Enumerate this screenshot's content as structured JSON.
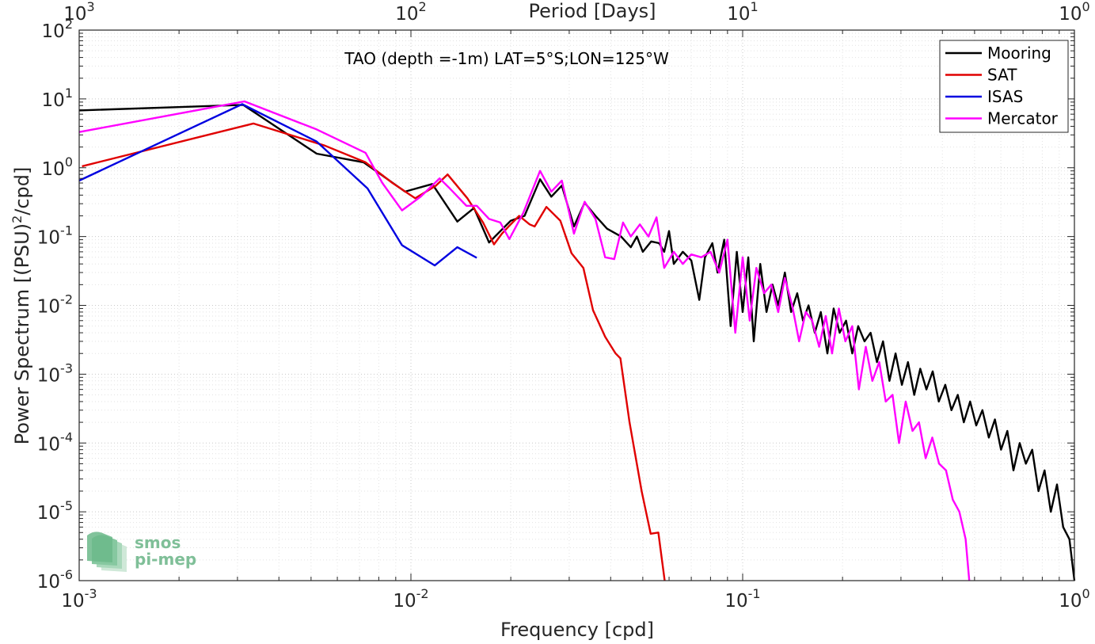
{
  "chart_data": {
    "type": "line",
    "xscale": "log",
    "yscale": "log",
    "xlim": [
      0.001,
      1
    ],
    "ylim": [
      1e-06,
      100
    ],
    "grid": "on (major and minor)",
    "legend_placement": "top-right",
    "xlabel": "Frequency [cpd]",
    "ylabel_parts": {
      "pre": "Power Spectrum [(PSU)",
      "sup": "2",
      "post": "/cpd]"
    },
    "top_axis_label": "Period [Days]",
    "annotation": "TAO (depth =-1m) LAT=5°S;LON=125°W",
    "x_tick_labels": [
      {
        "base": "10",
        "exp": "-3",
        "value": 0.001
      },
      {
        "base": "10",
        "exp": "-2",
        "value": 0.01
      },
      {
        "base": "10",
        "exp": "-1",
        "value": 0.1
      },
      {
        "base": "10",
        "exp": "0",
        "value": 1
      }
    ],
    "top_tick_labels": [
      {
        "base": "10",
        "exp": "3",
        "frequency": 0.001
      },
      {
        "base": "10",
        "exp": "2",
        "frequency": 0.01
      },
      {
        "base": "10",
        "exp": "1",
        "frequency": 0.1
      },
      {
        "base": "10",
        "exp": "0",
        "frequency": 1
      }
    ],
    "y_tick_labels": [
      {
        "base": "10",
        "exp": "2",
        "value": 100
      },
      {
        "base": "10",
        "exp": "1",
        "value": 10
      },
      {
        "base": "10",
        "exp": "0",
        "value": 1
      },
      {
        "base": "10",
        "exp": "-1",
        "value": 0.1
      },
      {
        "base": "10",
        "exp": "-2",
        "value": 0.01
      },
      {
        "base": "10",
        "exp": "-3",
        "value": 0.001
      },
      {
        "base": "10",
        "exp": "-4",
        "value": 0.0001
      },
      {
        "base": "10",
        "exp": "-5",
        "value": 1e-05
      },
      {
        "base": "10",
        "exp": "-6",
        "value": 1e-06
      }
    ],
    "series": [
      {
        "name": "Mooring",
        "color": "#000000",
        "points": [
          [
            0.001,
            6.8
          ],
          [
            0.00312,
            8.2
          ],
          [
            0.0052,
            1.6
          ],
          [
            0.0072,
            1.2
          ],
          [
            0.0096,
            0.45
          ],
          [
            0.0116,
            0.58
          ],
          [
            0.0138,
            0.165
          ],
          [
            0.0155,
            0.26
          ],
          [
            0.0172,
            0.082
          ],
          [
            0.02,
            0.17
          ],
          [
            0.022,
            0.2
          ],
          [
            0.0245,
            0.68
          ],
          [
            0.0265,
            0.38
          ],
          [
            0.0285,
            0.55
          ],
          [
            0.031,
            0.14
          ],
          [
            0.0334,
            0.31
          ],
          [
            0.036,
            0.2
          ],
          [
            0.039,
            0.13
          ],
          [
            0.043,
            0.1
          ],
          [
            0.046,
            0.07
          ],
          [
            0.048,
            0.1
          ],
          [
            0.05,
            0.06
          ],
          [
            0.053,
            0.085
          ],
          [
            0.056,
            0.08
          ],
          [
            0.058,
            0.06
          ],
          [
            0.06,
            0.12
          ],
          [
            0.062,
            0.04
          ],
          [
            0.066,
            0.06
          ],
          [
            0.07,
            0.045
          ],
          [
            0.074,
            0.012
          ],
          [
            0.077,
            0.05
          ],
          [
            0.081,
            0.08
          ],
          [
            0.084,
            0.03
          ],
          [
            0.088,
            0.09
          ],
          [
            0.092,
            0.005
          ],
          [
            0.096,
            0.06
          ],
          [
            0.1,
            0.008
          ],
          [
            0.104,
            0.05
          ],
          [
            0.108,
            0.003
          ],
          [
            0.113,
            0.04
          ],
          [
            0.118,
            0.008
          ],
          [
            0.123,
            0.02
          ],
          [
            0.128,
            0.01
          ],
          [
            0.134,
            0.03
          ],
          [
            0.14,
            0.008
          ],
          [
            0.146,
            0.015
          ],
          [
            0.152,
            0.006
          ],
          [
            0.158,
            0.01
          ],
          [
            0.165,
            0.004
          ],
          [
            0.172,
            0.008
          ],
          [
            0.18,
            0.002
          ],
          [
            0.188,
            0.009
          ],
          [
            0.196,
            0.004
          ],
          [
            0.205,
            0.006
          ],
          [
            0.214,
            0.002
          ],
          [
            0.223,
            0.005
          ],
          [
            0.233,
            0.003
          ],
          [
            0.243,
            0.004
          ],
          [
            0.254,
            0.0015
          ],
          [
            0.265,
            0.003
          ],
          [
            0.277,
            0.0008
          ],
          [
            0.289,
            0.002
          ],
          [
            0.302,
            0.0007
          ],
          [
            0.315,
            0.0015
          ],
          [
            0.329,
            0.0005
          ],
          [
            0.343,
            0.0012
          ],
          [
            0.358,
            0.0006
          ],
          [
            0.374,
            0.0011
          ],
          [
            0.39,
            0.0004
          ],
          [
            0.408,
            0.0007
          ],
          [
            0.426,
            0.0003
          ],
          [
            0.445,
            0.0005
          ],
          [
            0.464,
            0.0002
          ],
          [
            0.485,
            0.0004
          ],
          [
            0.506,
            0.00018
          ],
          [
            0.528,
            0.0003
          ],
          [
            0.552,
            0.00012
          ],
          [
            0.576,
            0.00022
          ],
          [
            0.601,
            8e-05
          ],
          [
            0.628,
            0.00015
          ],
          [
            0.655,
            4e-05
          ],
          [
            0.684,
            0.0001
          ],
          [
            0.714,
            5e-05
          ],
          [
            0.746,
            8e-05
          ],
          [
            0.779,
            2e-05
          ],
          [
            0.813,
            4e-05
          ],
          [
            0.849,
            1e-05
          ],
          [
            0.886,
            2.5e-05
          ],
          [
            0.925,
            6e-06
          ],
          [
            0.966,
            4e-06
          ],
          [
            1.0,
            1e-06
          ]
        ]
      },
      {
        "name": "SAT",
        "color": "#e00000",
        "points": [
          [
            0.00102,
            1.05
          ],
          [
            0.00335,
            4.4
          ],
          [
            0.0055,
            2.1
          ],
          [
            0.0073,
            1.2
          ],
          [
            0.0088,
            0.6
          ],
          [
            0.0103,
            0.36
          ],
          [
            0.0119,
            0.55
          ],
          [
            0.0129,
            0.8
          ],
          [
            0.0148,
            0.36
          ],
          [
            0.0165,
            0.16
          ],
          [
            0.0178,
            0.077
          ],
          [
            0.0188,
            0.11
          ],
          [
            0.0197,
            0.14
          ],
          [
            0.0212,
            0.2
          ],
          [
            0.0228,
            0.15
          ],
          [
            0.0236,
            0.14
          ],
          [
            0.0256,
            0.27
          ],
          [
            0.0282,
            0.17
          ],
          [
            0.0305,
            0.057
          ],
          [
            0.0331,
            0.035
          ],
          [
            0.0354,
            0.0085
          ],
          [
            0.0385,
            0.0035
          ],
          [
            0.0414,
            0.002
          ],
          [
            0.0428,
            0.0017
          ],
          [
            0.0456,
            0.0002
          ],
          [
            0.0496,
            2e-05
          ],
          [
            0.0528,
            4.8e-06
          ],
          [
            0.0557,
            5e-06
          ],
          [
            0.0582,
            1e-06
          ]
        ]
      },
      {
        "name": "ISAS",
        "color": "#0000e0",
        "points": [
          [
            0.001,
            0.65
          ],
          [
            0.0031,
            8.4
          ],
          [
            0.0052,
            2.4
          ],
          [
            0.0074,
            0.5
          ],
          [
            0.0094,
            0.075
          ],
          [
            0.0118,
            0.038
          ],
          [
            0.0138,
            0.07
          ],
          [
            0.0158,
            0.049
          ]
        ]
      },
      {
        "name": "Mercator",
        "color": "#ff00ff",
        "points": [
          [
            0.001,
            3.3
          ],
          [
            0.00315,
            9.2
          ],
          [
            0.0052,
            3.6
          ],
          [
            0.0073,
            1.65
          ],
          [
            0.0082,
            0.6
          ],
          [
            0.0094,
            0.24
          ],
          [
            0.0107,
            0.38
          ],
          [
            0.0122,
            0.7
          ],
          [
            0.0131,
            0.5
          ],
          [
            0.0147,
            0.28
          ],
          [
            0.0158,
            0.28
          ],
          [
            0.0172,
            0.18
          ],
          [
            0.0186,
            0.16
          ],
          [
            0.0198,
            0.092
          ],
          [
            0.0218,
            0.22
          ],
          [
            0.0245,
            0.9
          ],
          [
            0.0265,
            0.45
          ],
          [
            0.0285,
            0.65
          ],
          [
            0.031,
            0.11
          ],
          [
            0.0334,
            0.32
          ],
          [
            0.036,
            0.18
          ],
          [
            0.0385,
            0.05
          ],
          [
            0.041,
            0.047
          ],
          [
            0.0436,
            0.16
          ],
          [
            0.046,
            0.1
          ],
          [
            0.049,
            0.15
          ],
          [
            0.052,
            0.1
          ],
          [
            0.055,
            0.19
          ],
          [
            0.058,
            0.035
          ],
          [
            0.062,
            0.06
          ],
          [
            0.066,
            0.04
          ],
          [
            0.07,
            0.055
          ],
          [
            0.075,
            0.05
          ],
          [
            0.08,
            0.06
          ],
          [
            0.085,
            0.03
          ],
          [
            0.09,
            0.09
          ],
          [
            0.095,
            0.004
          ],
          [
            0.1,
            0.05
          ],
          [
            0.105,
            0.006
          ],
          [
            0.11,
            0.035
          ],
          [
            0.116,
            0.015
          ],
          [
            0.122,
            0.02
          ],
          [
            0.128,
            0.008
          ],
          [
            0.134,
            0.025
          ],
          [
            0.141,
            0.01
          ],
          [
            0.148,
            0.003
          ],
          [
            0.155,
            0.008
          ],
          [
            0.162,
            0.006
          ],
          [
            0.17,
            0.0025
          ],
          [
            0.178,
            0.007
          ],
          [
            0.186,
            0.002
          ],
          [
            0.195,
            0.009
          ],
          [
            0.204,
            0.003
          ],
          [
            0.214,
            0.005
          ],
          [
            0.224,
            0.0006
          ],
          [
            0.235,
            0.0025
          ],
          [
            0.246,
            0.0008
          ],
          [
            0.258,
            0.0015
          ],
          [
            0.27,
            0.0004
          ],
          [
            0.283,
            0.0005
          ],
          [
            0.296,
            0.0001
          ],
          [
            0.31,
            0.0004
          ],
          [
            0.325,
            0.00015
          ],
          [
            0.34,
            0.0002
          ],
          [
            0.356,
            6e-05
          ],
          [
            0.373,
            0.00012
          ],
          [
            0.391,
            5e-05
          ],
          [
            0.41,
            4e-05
          ],
          [
            0.43,
            1.5e-05
          ],
          [
            0.45,
            1e-05
          ],
          [
            0.47,
            4e-06
          ],
          [
            0.482,
            1e-06
          ]
        ]
      }
    ]
  },
  "watermark": {
    "line1": "smos",
    "line2": "pi-mep"
  }
}
